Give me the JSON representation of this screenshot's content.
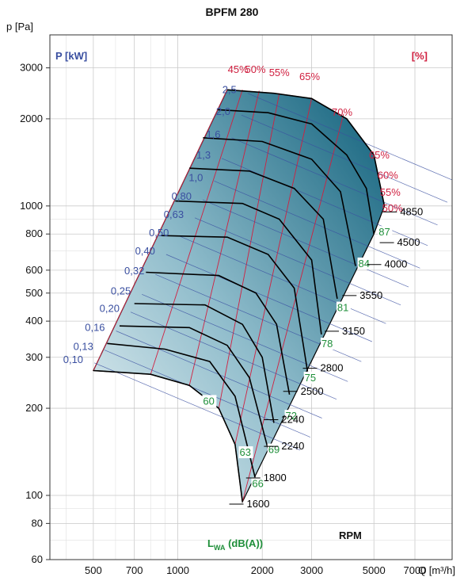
{
  "chart_data": {
    "type": "line",
    "title": "BPFM 280",
    "ylabel": "p [Pa]",
    "xlabel": "Q [m³/h]",
    "x_scale": "log",
    "y_scale": "log",
    "xlim": [
      350,
      9500
    ],
    "ylim": [
      60,
      3900
    ],
    "grid": true,
    "x_ticks": [
      {
        "v": 500,
        "label": "500"
      },
      {
        "v": 700,
        "label": "700"
      },
      {
        "v": 1000,
        "label": "1000"
      },
      {
        "v": 2000,
        "label": "2000"
      },
      {
        "v": 3000,
        "label": "3000"
      },
      {
        "v": 5000,
        "label": "5000"
      },
      {
        "v": 7000,
        "label": "7000"
      }
    ],
    "y_ticks": [
      {
        "v": 3000,
        "label": "3000"
      },
      {
        "v": 2000,
        "label": "2000"
      },
      {
        "v": 1000,
        "label": "1000"
      },
      {
        "v": 800,
        "label": "800"
      },
      {
        "v": 600,
        "label": "600"
      },
      {
        "v": 500,
        "label": "500"
      },
      {
        "v": 400,
        "label": "400"
      },
      {
        "v": 300,
        "label": "300"
      },
      {
        "v": 200,
        "label": "200"
      },
      {
        "v": 100,
        "label": "100"
      },
      {
        "v": 80,
        "label": "80"
      },
      {
        "v": 60,
        "label": "60"
      }
    ],
    "corner_labels": {
      "power": "P [kW]",
      "efficiency": "[%]",
      "sound": "L",
      "sound_sub": "WA",
      "sound_unit": " (dB(A))",
      "rpm": "RPM"
    },
    "power_labels": [
      {
        "label": "2,5",
        "q": 1620,
        "p": 2450
      },
      {
        "label": "2,0",
        "q": 1540,
        "p": 2060
      },
      {
        "label": "1,6",
        "q": 1420,
        "p": 1720
      },
      {
        "label": "1,3",
        "q": 1310,
        "p": 1460
      },
      {
        "label": "1,0",
        "q": 1230,
        "p": 1220
      },
      {
        "label": "0,80",
        "q": 1120,
        "p": 1050
      },
      {
        "label": "0,63",
        "q": 1050,
        "p": 910
      },
      {
        "label": "0,50",
        "q": 930,
        "p": 785
      },
      {
        "label": "0,40",
        "q": 830,
        "p": 680
      },
      {
        "label": "0,32",
        "q": 760,
        "p": 580
      },
      {
        "label": "0,25",
        "q": 680,
        "p": 495
      },
      {
        "label": "0,20",
        "q": 620,
        "p": 430
      },
      {
        "label": "0,16",
        "q": 550,
        "p": 370
      },
      {
        "label": "0,13",
        "q": 500,
        "p": 318
      },
      {
        "label": "0,10",
        "q": 460,
        "p": 287
      }
    ],
    "efficiency_labels_top": [
      {
        "label": "45%",
        "q": 1640,
        "p": 2880
      },
      {
        "label": "50%",
        "q": 1890,
        "p": 2880
      },
      {
        "label": "55%",
        "q": 2300,
        "p": 2810
      },
      {
        "label": "65%",
        "q": 2950,
        "p": 2720
      },
      {
        "label": "70%",
        "q": 3850,
        "p": 2050
      }
    ],
    "efficiency_labels_right": [
      {
        "label": "65%",
        "q": 4800,
        "p": 1460
      },
      {
        "label": "60%",
        "q": 5150,
        "p": 1240
      },
      {
        "label": "55%",
        "q": 5250,
        "p": 1085
      },
      {
        "label": "50%",
        "q": 5350,
        "p": 955
      }
    ],
    "sound_labels": [
      {
        "label": "87",
        "q": 5200,
        "p": 790
      },
      {
        "label": "84",
        "q": 4400,
        "p": 615
      },
      {
        "label": "81",
        "q": 3700,
        "p": 433
      },
      {
        "label": "78",
        "q": 3250,
        "p": 325
      },
      {
        "label": "75",
        "q": 2830,
        "p": 248
      },
      {
        "label": "72",
        "q": 2420,
        "p": 183
      },
      {
        "label": "69",
        "q": 2100,
        "p": 140
      },
      {
        "label": "66",
        "q": 1840,
        "p": 107
      },
      {
        "label": "63",
        "q": 1660,
        "p": 137
      },
      {
        "label": "60",
        "q": 1230,
        "p": 206
      }
    ],
    "rpm_labels": [
      {
        "label": "4850",
        "q": 6200,
        "p": 930
      },
      {
        "label": "4500",
        "q": 6050,
        "p": 728
      },
      {
        "label": "4000",
        "q": 5450,
        "p": 612
      },
      {
        "label": "3550",
        "q": 4450,
        "p": 478
      },
      {
        "label": "3150",
        "q": 3850,
        "p": 360
      },
      {
        "label": "2800",
        "q": 3220,
        "p": 268
      },
      {
        "label": "2500",
        "q": 2740,
        "p": 223
      },
      {
        "label": "2240",
        "q": 2340,
        "p": 178
      },
      {
        "label": "2240",
        "q": 2340,
        "p": 144
      },
      {
        "label": "1800",
        "q": 2020,
        "p": 112
      },
      {
        "label": "1600",
        "q": 1760,
        "p": 91
      }
    ],
    "fan_curves": [
      {
        "rpm": "4850",
        "points": [
          [
            1500,
            2520
          ],
          [
            2200,
            2450
          ],
          [
            3000,
            2350
          ],
          [
            4000,
            2000
          ],
          [
            5000,
            1500
          ],
          [
            5450,
            1000
          ]
        ]
      },
      {
        "rpm": "4500",
        "points": [
          [
            1390,
            2150
          ],
          [
            2100,
            2100
          ],
          [
            3000,
            1920
          ],
          [
            4000,
            1500
          ],
          [
            4700,
            1150
          ],
          [
            5000,
            800
          ]
        ]
      },
      {
        "rpm": "4000",
        "points": [
          [
            1230,
            1720
          ],
          [
            2000,
            1670
          ],
          [
            3000,
            1450
          ],
          [
            3800,
            1120
          ],
          [
            4300,
            620
          ]
        ]
      },
      {
        "rpm": "3550",
        "points": [
          [
            1100,
            1350
          ],
          [
            1800,
            1320
          ],
          [
            2600,
            1150
          ],
          [
            3300,
            900
          ],
          [
            3700,
            478
          ]
        ]
      },
      {
        "rpm": "3150",
        "points": [
          [
            980,
            1040
          ],
          [
            1700,
            1020
          ],
          [
            2300,
            900
          ],
          [
            3000,
            650
          ],
          [
            3250,
            360
          ]
        ]
      },
      {
        "rpm": "2800",
        "points": [
          [
            870,
            790
          ],
          [
            1500,
            780
          ],
          [
            2100,
            680
          ],
          [
            2600,
            520
          ],
          [
            2900,
            268
          ]
        ]
      },
      {
        "rpm": "2500",
        "points": [
          [
            770,
            590
          ],
          [
            1400,
            575
          ],
          [
            1900,
            500
          ],
          [
            2250,
            390
          ],
          [
            2500,
            223
          ]
        ]
      },
      {
        "rpm": "2240",
        "points": [
          [
            700,
            460
          ],
          [
            1250,
            455
          ],
          [
            1700,
            390
          ],
          [
            2000,
            300
          ],
          [
            2200,
            178
          ]
        ]
      },
      {
        "rpm": "2240",
        "points": [
          [
            620,
            385
          ],
          [
            1100,
            380
          ],
          [
            1500,
            330
          ],
          [
            1800,
            255
          ],
          [
            2100,
            144
          ]
        ]
      },
      {
        "rpm": "1800",
        "points": [
          [
            560,
            335
          ],
          [
            900,
            320
          ],
          [
            1300,
            290
          ],
          [
            1600,
            220
          ],
          [
            1900,
            112
          ]
        ]
      },
      {
        "rpm": "1600",
        "points": [
          [
            500,
            270
          ],
          [
            800,
            262
          ],
          [
            1100,
            240
          ],
          [
            1400,
            200
          ],
          [
            1600,
            150
          ],
          [
            1700,
            95
          ]
        ]
      }
    ]
  }
}
